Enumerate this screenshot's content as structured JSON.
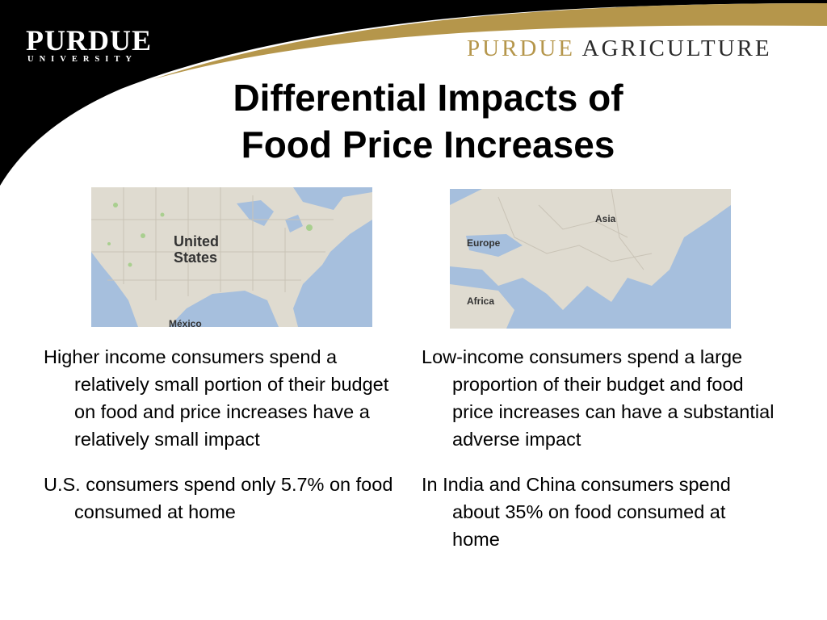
{
  "header": {
    "purdue_logo_word": "PURDUE",
    "purdue_logo_sub": "UNIVERSITY",
    "ag_logo_purdue": "PURDUE",
    "ag_logo_agriculture": "AGRICULTURE",
    "colors": {
      "band": "#000000",
      "gold": "#b5964b"
    }
  },
  "slide": {
    "title_line1": "Differential Impacts of",
    "title_line2": "Food Price Increases"
  },
  "maps": {
    "us": {
      "label_line1": "United",
      "label_line2": "States",
      "label_mexico": "México"
    },
    "asia": {
      "label_asia": "Asia",
      "label_europe": "Europe",
      "label_africa": "Africa"
    }
  },
  "left": {
    "p1": "Higher income consumers spend a relatively small portion of their budget on food and price increases have a relatively small impact",
    "p2": "U.S. consumers spend only 5.7% on food consumed at home"
  },
  "right": {
    "p1": "Low-income consumers spend a large proportion of their budget and food price increases can have a substantial adverse impact",
    "p2": "In India and China consumers spend about 35% on food consumed at home"
  }
}
